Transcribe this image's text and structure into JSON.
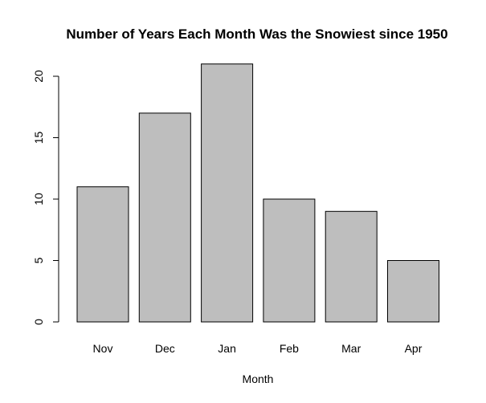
{
  "chart_data": {
    "type": "bar",
    "title": "Number of Years Each Month Was the Snowiest since 1950",
    "xlabel": "Month",
    "ylabel": "",
    "categories": [
      "Nov",
      "Dec",
      "Jan",
      "Feb",
      "Mar",
      "Apr"
    ],
    "values": [
      11,
      17,
      21,
      10,
      9,
      5
    ],
    "ylim": [
      0,
      21
    ],
    "yticks": [
      0,
      5,
      10,
      15,
      20
    ],
    "grid": false,
    "legend": "none",
    "bar_color": "#bebebe",
    "border_color": "#000000"
  }
}
